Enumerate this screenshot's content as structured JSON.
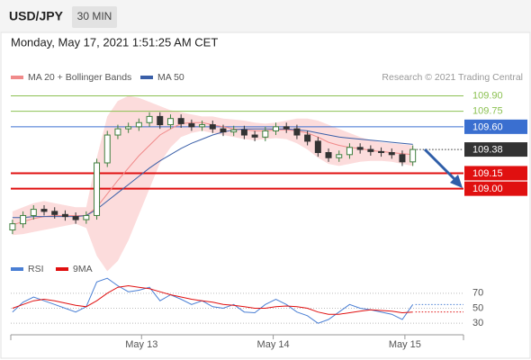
{
  "header": {
    "symbol": "USD/JPY",
    "timeframe": "30 MIN",
    "timestamp": "Monday, May 17, 2021 1:51:25 AM CET"
  },
  "chart_data": [
    {
      "type": "candlestick",
      "annotation": "Research © 2021 Trading Central",
      "x": [
        12.02,
        12.1,
        12.18,
        12.26,
        12.34,
        12.42,
        12.5,
        12.58,
        12.66,
        12.74,
        12.82,
        12.9,
        12.98,
        13.06,
        13.14,
        13.22,
        13.3,
        13.38,
        13.46,
        13.54,
        13.62,
        13.7,
        13.78,
        13.86,
        13.94,
        14.02,
        14.1,
        14.18,
        14.26,
        14.34,
        14.42,
        14.5,
        14.58,
        14.66,
        14.74,
        14.82,
        14.9,
        14.98,
        15.06
      ],
      "open": [
        108.6,
        108.66,
        108.74,
        108.8,
        108.78,
        108.75,
        108.73,
        108.7,
        108.74,
        109.25,
        109.52,
        109.58,
        109.6,
        109.64,
        109.7,
        109.62,
        109.68,
        109.63,
        109.6,
        109.62,
        109.58,
        109.55,
        109.57,
        109.52,
        109.5,
        109.56,
        109.6,
        109.58,
        109.52,
        109.46,
        109.35,
        109.3,
        109.33,
        109.4,
        109.38,
        109.36,
        109.35,
        109.33,
        109.26
      ],
      "high": [
        108.7,
        108.78,
        108.84,
        108.84,
        108.82,
        108.79,
        108.77,
        108.78,
        109.29,
        109.56,
        109.62,
        109.64,
        109.68,
        109.74,
        109.74,
        109.72,
        109.72,
        109.67,
        109.66,
        109.66,
        109.62,
        109.61,
        109.61,
        109.56,
        109.6,
        109.64,
        109.64,
        109.62,
        109.56,
        109.5,
        109.39,
        109.37,
        109.44,
        109.44,
        109.42,
        109.4,
        109.39,
        109.37,
        109.42
      ],
      "low": [
        108.56,
        108.62,
        108.7,
        108.74,
        108.71,
        108.69,
        108.66,
        108.66,
        108.7,
        109.21,
        109.48,
        109.54,
        109.56,
        109.6,
        109.58,
        109.58,
        109.59,
        109.56,
        109.56,
        109.54,
        109.51,
        109.51,
        109.48,
        109.46,
        109.46,
        109.52,
        109.54,
        109.48,
        109.42,
        109.31,
        109.26,
        109.26,
        109.29,
        109.34,
        109.32,
        109.31,
        109.29,
        109.22,
        109.22
      ],
      "close": [
        108.66,
        108.74,
        108.8,
        108.78,
        108.75,
        108.73,
        108.7,
        108.74,
        109.25,
        109.52,
        109.58,
        109.6,
        109.64,
        109.7,
        109.62,
        109.68,
        109.63,
        109.6,
        109.62,
        109.58,
        109.55,
        109.57,
        109.52,
        109.5,
        109.56,
        109.6,
        109.58,
        109.52,
        109.46,
        109.35,
        109.3,
        109.33,
        109.4,
        109.38,
        109.36,
        109.35,
        109.33,
        109.26,
        109.38
      ],
      "up_color": "#3f7f3f",
      "down_color": "#333333",
      "series": [
        {
          "name": "MA 20 + Bollinger Bands",
          "color": "#f08a8a",
          "band_color": "#fcdcdc",
          "values": [
            108.65,
            108.68,
            108.71,
            108.73,
            108.74,
            108.74,
            108.74,
            108.74,
            108.82,
            108.95,
            109.08,
            109.2,
            109.32,
            109.42,
            109.52,
            109.58,
            109.63,
            109.64,
            109.64,
            109.62,
            109.6,
            109.58,
            109.57,
            109.56,
            109.56,
            109.57,
            109.57,
            109.56,
            109.54,
            109.5,
            109.45,
            109.42,
            109.4,
            109.39,
            109.37,
            109.36,
            109.35,
            109.34,
            109.33
          ],
          "upper": [
            108.78,
            108.82,
            108.86,
            108.88,
            108.86,
            108.84,
            108.82,
            108.82,
            109.3,
            109.7,
            109.85,
            109.9,
            109.88,
            109.84,
            109.8,
            109.76,
            109.74,
            109.72,
            109.7,
            109.7,
            109.68,
            109.67,
            109.66,
            109.64,
            109.63,
            109.64,
            109.66,
            109.68,
            109.68,
            109.66,
            109.62,
            109.58,
            109.54,
            109.5,
            109.47,
            109.45,
            109.44,
            109.43,
            109.42
          ],
          "lower": [
            108.55,
            108.56,
            108.58,
            108.6,
            108.62,
            108.64,
            108.66,
            108.62,
            108.35,
            108.2,
            108.3,
            108.5,
            108.75,
            109.0,
            109.25,
            109.4,
            109.5,
            109.54,
            109.56,
            109.54,
            109.52,
            109.5,
            109.48,
            109.47,
            109.48,
            109.49,
            109.48,
            109.44,
            109.38,
            109.3,
            109.24,
            109.22,
            109.24,
            109.26,
            109.27,
            109.27,
            109.26,
            109.24,
            109.22
          ]
        },
        {
          "name": "MA 50",
          "color": "#3a5fa8",
          "values": [
            108.72,
            108.72,
            108.73,
            108.73,
            108.73,
            108.73,
            108.73,
            108.74,
            108.8,
            108.88,
            108.96,
            109.04,
            109.12,
            109.2,
            109.27,
            109.33,
            109.39,
            109.44,
            109.48,
            109.52,
            109.55,
            109.57,
            109.58,
            109.58,
            109.58,
            109.58,
            109.58,
            109.57,
            109.56,
            109.54,
            109.52,
            109.5,
            109.49,
            109.48,
            109.47,
            109.46,
            109.45,
            109.44,
            109.43
          ]
        }
      ],
      "levels": [
        {
          "value": 109.9,
          "label": "109.90",
          "color": "#8cc152",
          "style": "text",
          "line": "solid",
          "width": 1
        },
        {
          "value": 109.75,
          "label": "109.75",
          "color": "#8cc152",
          "style": "text",
          "line": "solid",
          "width": 1
        },
        {
          "value": 109.6,
          "label": "109.60",
          "color": "#3a6fd0",
          "style": "box",
          "line": "solid",
          "width": 1
        },
        {
          "value": 109.38,
          "label": "109.38",
          "color": "#333333",
          "style": "box",
          "line": "dotted",
          "width": 1
        },
        {
          "value": 109.15,
          "label": "109.15",
          "color": "#e01010",
          "style": "box",
          "line": "solid",
          "width": 2
        },
        {
          "value": 109.0,
          "label": "109.00",
          "color": "#e01010",
          "style": "box",
          "line": "solid",
          "width": 2
        }
      ],
      "xlim": [
        12.007,
        15.445
      ],
      "ylim": [
        108.43,
        110.0
      ],
      "xticks": [
        {
          "value": 13,
          "label": "May 13"
        },
        {
          "value": 14,
          "label": "May 14"
        },
        {
          "value": 15,
          "label": "May 15"
        }
      ]
    },
    {
      "type": "line",
      "x": [
        12.02,
        12.1,
        12.18,
        12.26,
        12.34,
        12.42,
        12.5,
        12.58,
        12.66,
        12.74,
        12.82,
        12.9,
        12.98,
        13.06,
        13.14,
        13.22,
        13.3,
        13.38,
        13.46,
        13.54,
        13.62,
        13.7,
        13.78,
        13.86,
        13.94,
        14.02,
        14.1,
        14.18,
        14.26,
        14.34,
        14.42,
        14.5,
        14.58,
        14.66,
        14.74,
        14.82,
        14.9,
        14.98,
        15.06
      ],
      "series": [
        {
          "name": "RSI",
          "color": "#4a7fd4",
          "values": [
            45,
            58,
            65,
            60,
            55,
            50,
            45,
            52,
            85,
            90,
            80,
            72,
            74,
            78,
            60,
            68,
            62,
            55,
            60,
            52,
            50,
            55,
            45,
            44,
            55,
            62,
            55,
            45,
            40,
            30,
            35,
            45,
            55,
            50,
            48,
            45,
            42,
            35,
            55
          ]
        },
        {
          "name": "9MA",
          "color": "#e01010",
          "values": [
            50,
            55,
            60,
            62,
            60,
            57,
            54,
            52,
            60,
            70,
            78,
            80,
            78,
            76,
            72,
            68,
            65,
            62,
            60,
            58,
            55,
            54,
            52,
            50,
            50,
            52,
            53,
            52,
            50,
            45,
            42,
            42,
            44,
            46,
            48,
            47,
            46,
            44,
            45
          ]
        }
      ],
      "xlim": [
        12.007,
        15.445
      ],
      "ylim": [
        17,
        101
      ],
      "yticks": [
        30,
        50,
        70
      ],
      "grid": true,
      "xticks": [
        {
          "value": 13,
          "label": "May 13"
        },
        {
          "value": 14,
          "label": "May 14"
        },
        {
          "value": 15,
          "label": "May 15"
        }
      ]
    }
  ]
}
